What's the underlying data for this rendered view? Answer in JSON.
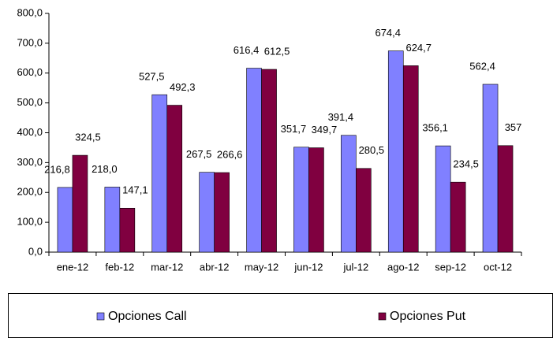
{
  "chart_data": {
    "type": "bar",
    "categories": [
      "ene-12",
      "feb-12",
      "mar-12",
      "abr-12",
      "may-12",
      "jun-12",
      "jul-12",
      "ago-12",
      "sep-12",
      "oct-12"
    ],
    "series": [
      {
        "name": "Opciones Call",
        "color": "#8080ff",
        "values": [
          216.8,
          218.0,
          527.5,
          267.5,
          616.4,
          351.7,
          391.4,
          674.4,
          356.1,
          562.4
        ],
        "value_labels": [
          "216,8",
          "218,0",
          "527,5",
          "267,5",
          "616,4",
          "351,7",
          "391,4",
          "674,4",
          "356,1",
          "562,4"
        ]
      },
      {
        "name": "Opciones Put",
        "color": "#800040",
        "values": [
          324.5,
          147.1,
          492.3,
          266.6,
          612.5,
          349.7,
          280.5,
          624.7,
          234.5,
          357
        ],
        "value_labels": [
          "324,5",
          "147,1",
          "492,3",
          "266,6",
          "612,5",
          "349,7",
          "280,5",
          "624,7",
          "234,5",
          "357"
        ]
      }
    ],
    "ylim": [
      0,
      800
    ],
    "yticks": [
      {
        "value": 0,
        "label": "0,0"
      },
      {
        "value": 100,
        "label": "100,0"
      },
      {
        "value": 200,
        "label": "200,0"
      },
      {
        "value": 300,
        "label": "300,0"
      },
      {
        "value": 400,
        "label": "400,0"
      },
      {
        "value": 500,
        "label": "500,0"
      },
      {
        "value": 600,
        "label": "600,0"
      },
      {
        "value": 700,
        "label": "700,0"
      },
      {
        "value": 800,
        "label": "800,0"
      }
    ],
    "legend": "bottom"
  }
}
